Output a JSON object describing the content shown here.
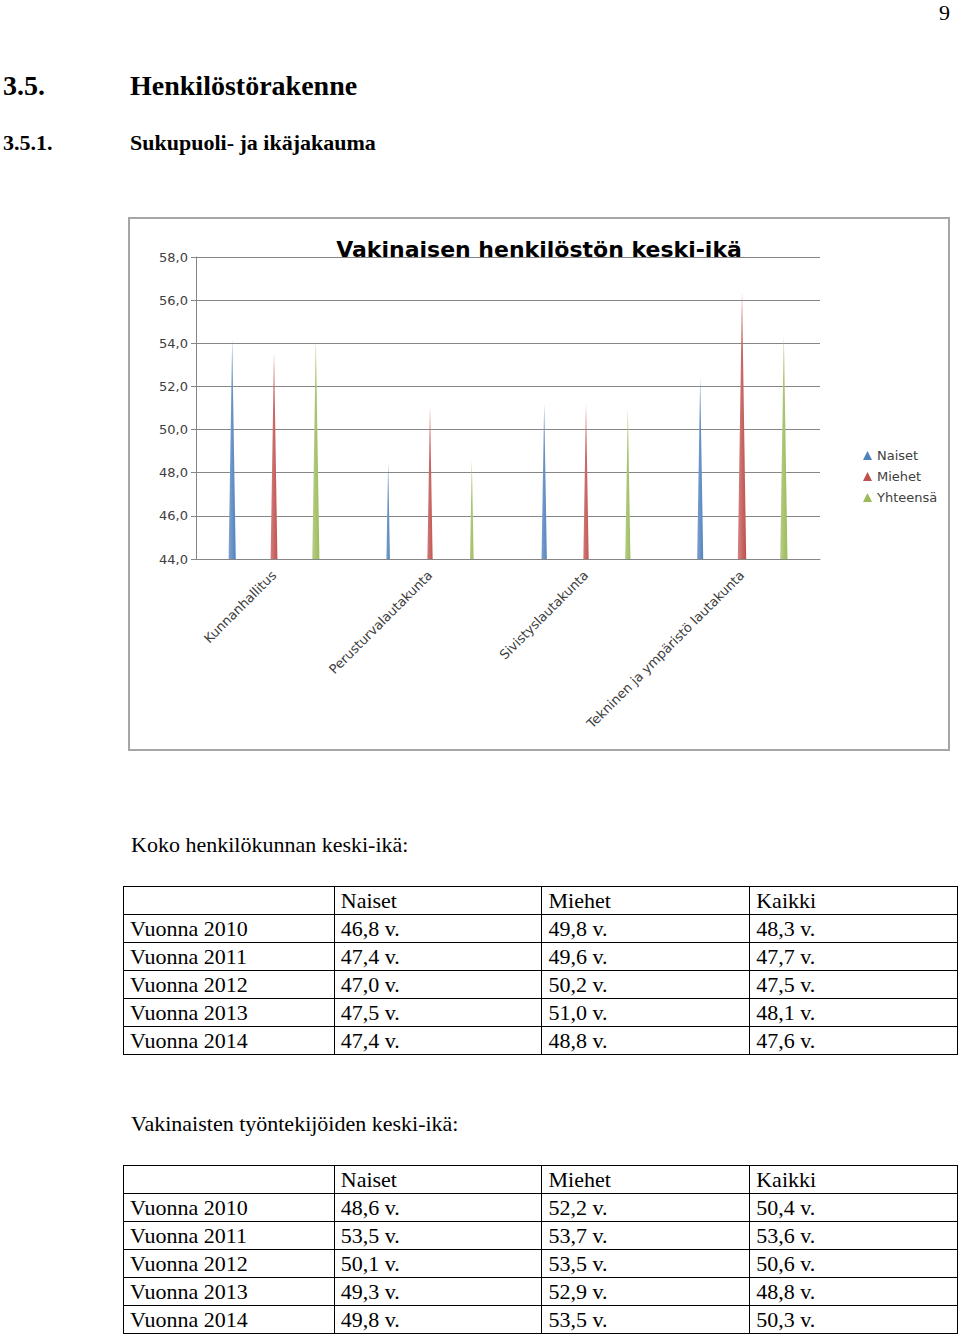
{
  "page_number": "9",
  "headings": [
    {
      "number": "3.5.",
      "text": "Henkilöstörakenne"
    },
    {
      "number": "3.5.1.",
      "text": "Sukupuoli- ja ikäjakauma"
    }
  ],
  "chart_data": {
    "type": "bar",
    "marker": "cone",
    "title": "Vakinaisen henkilöstön keski-ikä",
    "categories": [
      "Kunnanhallitus",
      "Perusturvalautakunta",
      "Sivistyslautakunta",
      "Tekninen ja ympäristö lautakunta"
    ],
    "series": [
      {
        "name": "Naiset",
        "color": "#4f81bd",
        "values": [
          54.2,
          48.5,
          51.2,
          52.4
        ]
      },
      {
        "name": "Miehet",
        "color": "#c0504d",
        "values": [
          53.6,
          51.1,
          51.2,
          56.4
        ]
      },
      {
        "name": "Yhteensä",
        "color": "#9bbb59",
        "values": [
          54.2,
          48.6,
          51.0,
          54.4
        ]
      }
    ],
    "ylim": [
      44,
      58
    ],
    "yticks": [
      {
        "value": 44,
        "label": "44,0"
      },
      {
        "value": 46,
        "label": "46,0"
      },
      {
        "value": 48,
        "label": "48,0"
      },
      {
        "value": 50,
        "label": "50,0"
      },
      {
        "value": 52,
        "label": "52,0"
      },
      {
        "value": 54,
        "label": "54,0"
      },
      {
        "value": 56,
        "label": "56,0"
      },
      {
        "value": 58,
        "label": "58,0"
      }
    ],
    "grid": true,
    "legend": "right"
  },
  "tables": [
    {
      "title": "Koko henkilökunnan keski-ikä:",
      "columns": [
        "Naiset",
        "Miehet",
        "Kaikki"
      ],
      "rows": [
        {
          "label": "Vuonna 2010",
          "cells": [
            "46,8 v.",
            "49,8 v.",
            "48,3 v."
          ]
        },
        {
          "label": "Vuonna 2011",
          "cells": [
            "47,4 v.",
            "49,6 v.",
            "47,7 v."
          ]
        },
        {
          "label": "Vuonna 2012",
          "cells": [
            "47,0 v.",
            "50,2 v.",
            "47,5 v."
          ]
        },
        {
          "label": "Vuonna 2013",
          "cells": [
            "47,5 v.",
            "51,0 v.",
            "48,1 v."
          ]
        },
        {
          "label": "Vuonna 2014",
          "cells": [
            "47,4 v.",
            "48,8 v.",
            "47,6 v."
          ]
        }
      ]
    },
    {
      "title": "Vakinaisten työntekijöiden keski-ikä:",
      "columns": [
        "Naiset",
        "Miehet",
        "Kaikki"
      ],
      "rows": [
        {
          "label": "Vuonna 2010",
          "cells": [
            "48,6 v.",
            "52,2 v.",
            "50,4 v."
          ]
        },
        {
          "label": "Vuonna 2011",
          "cells": [
            "53,5 v.",
            "53,7 v.",
            "53,6 v."
          ]
        },
        {
          "label": "Vuonna 2012",
          "cells": [
            "50,1 v.",
            "53,5 v.",
            "50,6 v."
          ]
        },
        {
          "label": "Vuonna 2013",
          "cells": [
            "49,3 v.",
            "52,9 v.",
            "48,8 v."
          ]
        },
        {
          "label": "Vuonna 2014",
          "cells": [
            "49,8 v.",
            "53,5 v.",
            "50,3 v."
          ]
        }
      ]
    }
  ]
}
